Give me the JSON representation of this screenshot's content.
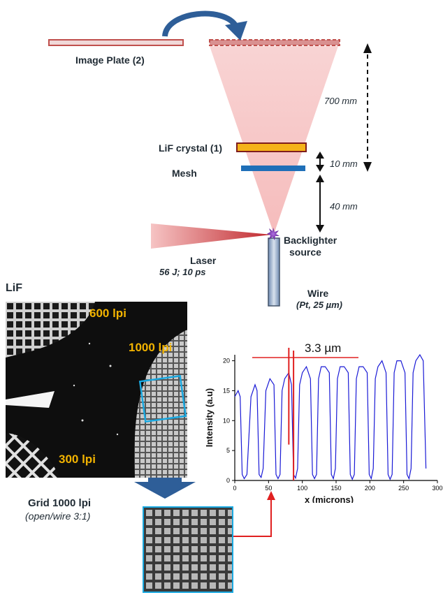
{
  "diagram": {
    "image_plate_label": "Image Plate (2)",
    "lif_crystal_label": "LiF crystal (1)",
    "mesh_label": "Mesh",
    "distance_700": "700 mm",
    "distance_10": "10 mm",
    "distance_40": "40 mm",
    "backlighter_line1": "Backlighter",
    "backlighter_line2": "source",
    "laser_label": "Laser",
    "laser_params": "56 J; 10 ps",
    "wire_label": "Wire",
    "wire_params": "(Pt, 25 µm)"
  },
  "image_panel": {
    "title": "LiF",
    "lpi_600": "600 lpi",
    "lpi_1000": "1000 lpi",
    "lpi_300": "300 lpi",
    "grid_label": "Grid 1000 lpi",
    "grid_ratio": "(open/wire 3:1)"
  },
  "colors": {
    "plate": "#c0504d",
    "crystal_fill": "#f5b31a",
    "crystal_border": "#7f1d1d",
    "mesh": "#1f6fb8",
    "beam": "#f3b8b8",
    "laser": "#c0282d",
    "arrow_blue": "#2e5e98",
    "plot_line": "#1a1ad6",
    "marker_red": "#e02020",
    "highlight_box": "#19a8e0",
    "lpi_text": "#f2b300"
  },
  "chart_data": {
    "type": "line",
    "title": "",
    "annotation": "3.3 µm",
    "xlabel": "x (microns)",
    "ylabel": "Intensity (a.u)",
    "xlim": [
      0,
      300
    ],
    "ylim": [
      0,
      21
    ],
    "xticks": [
      0,
      50,
      100,
      150,
      200,
      250,
      300
    ],
    "yticks": [
      0,
      5,
      10,
      15,
      20
    ],
    "xtick_labels": [
      "0",
      "50",
      "100",
      "150",
      "200",
      "250",
      "300"
    ],
    "ytick_labels": [
      "0",
      "5",
      "10",
      "15",
      "20"
    ],
    "series": [
      {
        "x": [
          0,
          5,
          8,
          11,
          14,
          18,
          24,
          30,
          33,
          36,
          39,
          42,
          46,
          52,
          58,
          61,
          64,
          67,
          70,
          74,
          80,
          84,
          87,
          90,
          93,
          96,
          100,
          106,
          112,
          115,
          118,
          121,
          124,
          128,
          134,
          140,
          143,
          146,
          149,
          152,
          156,
          162,
          168,
          171,
          174,
          177,
          180,
          184,
          190,
          196,
          199,
          202,
          205,
          208,
          212,
          218,
          224,
          227,
          230,
          233,
          236,
          240,
          246,
          252,
          255,
          258,
          261,
          264,
          268,
          274,
          279,
          283
        ],
        "y": [
          14,
          15,
          14,
          1,
          0.3,
          1,
          14,
          16,
          15,
          1,
          0.5,
          2,
          15,
          17,
          16,
          1,
          0.3,
          1,
          15,
          17,
          18,
          16,
          1,
          0.4,
          2,
          16,
          18,
          19,
          17,
          1,
          0.3,
          1,
          17,
          19,
          19,
          18,
          1,
          0.3,
          2,
          17,
          19,
          19,
          18,
          1,
          0.2,
          1,
          17,
          19,
          19,
          18,
          1,
          0.3,
          2,
          17,
          19,
          20,
          18,
          1,
          0.2,
          1,
          18,
          20,
          20,
          18,
          1,
          0.3,
          2,
          18,
          20,
          21,
          20,
          2
        ]
      }
    ]
  }
}
